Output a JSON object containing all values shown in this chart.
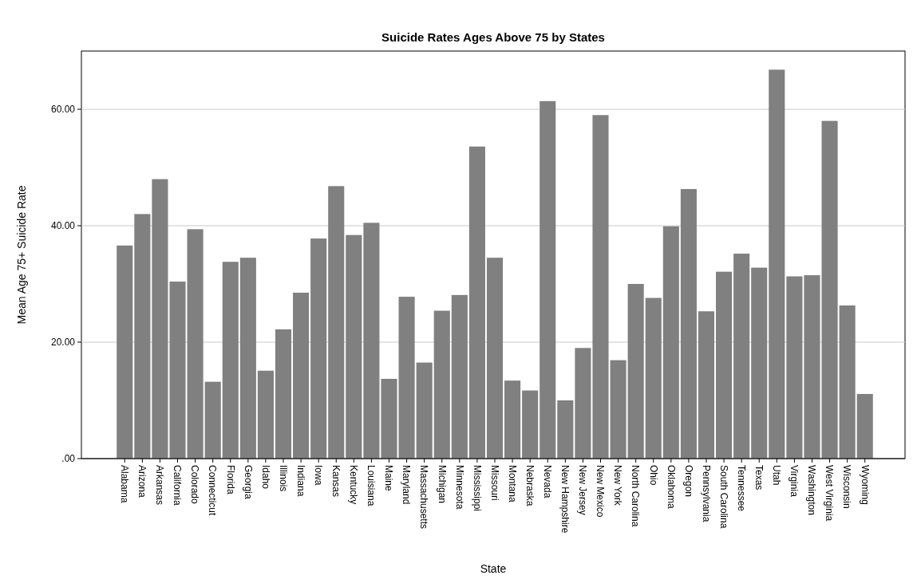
{
  "chart_data": {
    "type": "bar",
    "title": "Suicide Rates Ages Above 75 by States",
    "xlabel": "State",
    "ylabel": "Mean Age 75+ Suicide Rate",
    "categories": [
      "Alabama",
      "Arizona",
      "Arkansas",
      "California",
      "Colorado",
      "Connecticut",
      "Florida",
      "Georgia",
      "Idaho",
      "Illinois",
      "Indiana",
      "Iowa",
      "Kansas",
      "Kentucky",
      "Louisiana",
      "Maine",
      "Maryland",
      "Massachusetts",
      "Michigan",
      "Minnesota",
      "Mississippi",
      "Missouri",
      "Montana",
      "Nebraska",
      "Nevada",
      "New Hampshire",
      "New Jersey",
      "New Mexico",
      "New York",
      "North Carolina",
      "Ohio",
      "Oklahoma",
      "Oregon",
      "Pennsylvania",
      "South Carolina",
      "Tennessee",
      "Texas",
      "Utah",
      "Virginia",
      "Washington",
      "West Virginia",
      "Wisconsin",
      "Wyoming"
    ],
    "values": [
      36.6,
      42.0,
      48.0,
      30.4,
      39.4,
      13.2,
      33.8,
      34.5,
      15.1,
      22.2,
      28.5,
      37.8,
      46.8,
      38.4,
      40.5,
      13.7,
      27.8,
      16.5,
      25.4,
      28.1,
      53.6,
      34.5,
      13.4,
      11.7,
      61.4,
      10.0,
      19.0,
      59.0,
      16.9,
      30.0,
      27.6,
      39.9,
      46.3,
      25.3,
      32.1,
      35.2,
      32.8,
      66.8,
      31.3,
      31.5,
      58.0,
      26.3,
      11.1
    ],
    "color": "#808080",
    "ylim": [
      0,
      70
    ],
    "yticks": [
      {
        "value": 0,
        "label": ".00"
      },
      {
        "value": 20,
        "label": "20.00"
      },
      {
        "value": 40,
        "label": "40.00"
      },
      {
        "value": 60,
        "label": "60.00"
      }
    ],
    "grid": "y"
  }
}
